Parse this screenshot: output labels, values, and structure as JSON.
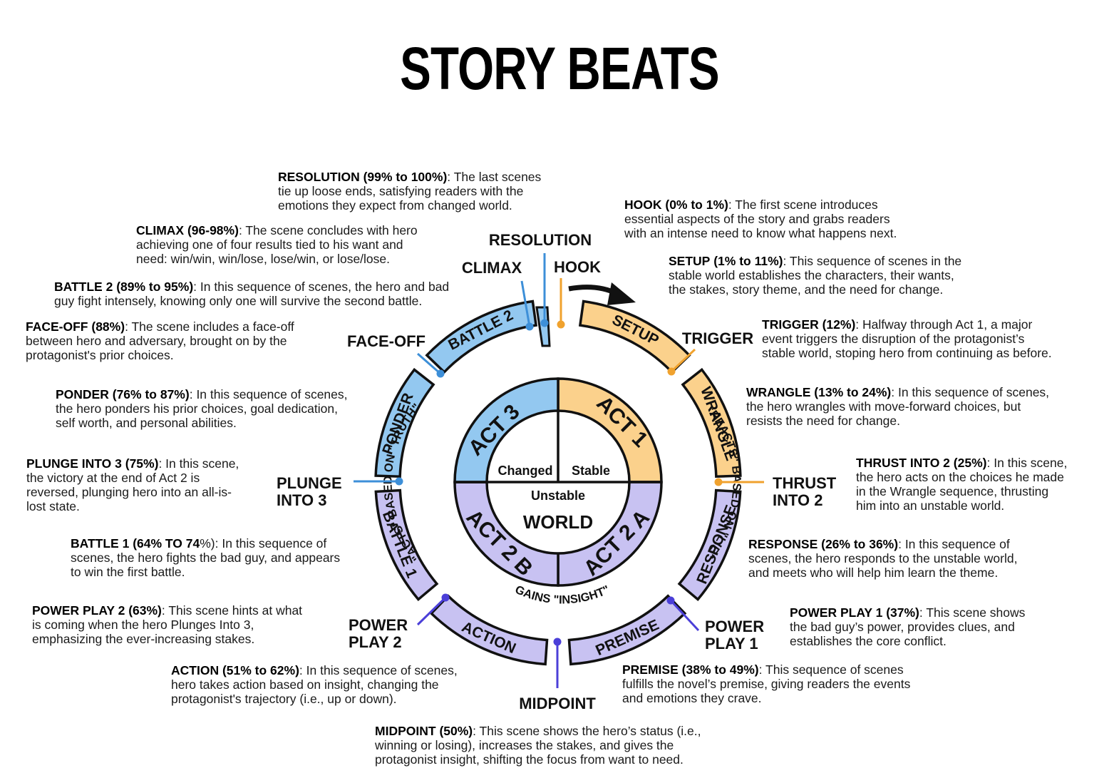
{
  "title": "STORY BEATS",
  "colors": {
    "orange": "#fbd18c",
    "blue": "#93c8f0",
    "purple": "#c8c2f2",
    "orange_line": "#f0a22e",
    "blue_line": "#3d8fd8",
    "purple_line": "#4b3fd8"
  },
  "beats": [
    {
      "id": "resolution",
      "name": "RESOLUTION",
      "range": "(99% to 100%)",
      "text": [
        "The last scenes",
        "tie up loose ends, satisfying readers with the",
        "emotions they expect from changed world."
      ]
    },
    {
      "id": "hook",
      "name": "HOOK",
      "range": "(0% to 1%)",
      "text": [
        "The first scene introduces",
        "essential aspects of the story and grabs readers",
        "with an intense need to know what happens next."
      ]
    },
    {
      "id": "climax",
      "name": "CLIMAX",
      "range": "(96-98%)",
      "text": [
        "The scene concludes with hero",
        "achieving one of four results tied to his want and",
        "need: win/win, win/lose, lose/win, or lose/lose."
      ]
    },
    {
      "id": "setup",
      "name": "SETUP",
      "range": "(1% to 11%)",
      "text": [
        "This sequence of scenes in the",
        "stable world establishes the characters, their wants,",
        "the stakes, story theme, and the need for change."
      ]
    },
    {
      "id": "battle2",
      "name": "BATTLE 2",
      "range": "(89% to 95%)",
      "text": [
        "In this sequence of scenes, the hero and bad",
        "guy fight intensely, knowing only one will survive the second battle."
      ]
    },
    {
      "id": "faceoff",
      "name": "FACE-OFF",
      "range": "(88%)",
      "text": [
        "The scene includes a face-off",
        "between hero and adversary, brought on by the",
        "protagonist's prior choices."
      ]
    },
    {
      "id": "trigger",
      "name": "TRIGGER",
      "range": "(12%)",
      "text": [
        "Halfway through Act 1, a major",
        "event triggers the disruption of the protagonist’s",
        "stable world, stoping hero from continuing as before."
      ]
    },
    {
      "id": "ponder",
      "name": "PONDER",
      "range": "(76% to 87%)",
      "text": [
        "In this sequence of scenes,",
        "the hero ponders his prior choices, goal dedication,",
        "self worth, and personal abilities."
      ]
    },
    {
      "id": "wrangle",
      "name": "WRANGLE",
      "range": "(13% to 24%)",
      "text": [
        "In this sequence of scenes,",
        "the hero wrangles with move-forward choices, but",
        "resists the need for change."
      ]
    },
    {
      "id": "plunge",
      "name": "PLUNGE INTO 3",
      "range": "(75%)",
      "text": [
        "In this scene,",
        "the victory at the end of Act 2 is",
        "reversed, plunging hero into an all-is-",
        "lost state."
      ]
    },
    {
      "id": "thrust",
      "name": "THRUST INTO 2",
      "range": "(25%)",
      "text": [
        "In this scene,",
        "the hero acts on the choices he made",
        "in the Wrangle sequence, thrusting",
        "him into an unstable world."
      ]
    },
    {
      "id": "battle1",
      "name": "BATTLE 1",
      "range": "(64% TO 74",
      "tail": "%)",
      "text": [
        ": In this sequence of",
        "scenes, the hero fights the bad guy, and appears",
        "to win the first battle."
      ]
    },
    {
      "id": "response",
      "name": "RESPONSE",
      "range": "(26% to 36%)",
      "text": [
        "In this sequence of",
        "scenes, the hero responds to the unstable world,",
        "and meets who will help him learn the theme."
      ]
    },
    {
      "id": "powerplay2",
      "name": "POWER PLAY 2",
      "range": "(63%)",
      "text": [
        "This scene hints at what",
        "is coming when the hero Plunges Into 3,",
        "emphasizing the ever-increasing stakes."
      ]
    },
    {
      "id": "powerplay1",
      "name": "POWER PLAY 1",
      "range": "(37%)",
      "text": [
        "This scene shows",
        "the bad guy’s power, provides clues, and",
        "establishes the core conflict."
      ]
    },
    {
      "id": "action",
      "name": "ACTION",
      "range": "(51% to 62%)",
      "text": [
        "In this sequence of scenes,",
        "hero takes action based on insight, changing the",
        "protagonist's trajectory (i.e., up or down)."
      ]
    },
    {
      "id": "premise",
      "name": "PREMISE",
      "range": "(38% to 49%)",
      "text": [
        "This sequence of scenes",
        "fulfills the novel’s premise, giving readers the events",
        "and emotions they crave."
      ]
    },
    {
      "id": "midpoint",
      "name": "MIDPOINT",
      "range": "(50%)",
      "text": [
        "This scene shows the hero’s status (i.e.,",
        "winning or losing), increases the stakes, and gives the",
        "protagonist insight, shifting the focus from want to need."
      ]
    }
  ],
  "wheel": {
    "segments": [
      "SETUP",
      "WRANGLE",
      "RESPONSE",
      "PREMISE",
      "ACTION",
      "BATTLE 1",
      "PONDER",
      "BATTLE 2"
    ],
    "acts": [
      "ACT 1",
      "ACT 2 A",
      "ACT 2 B",
      "ACT 3"
    ],
    "center": {
      "stable": "Stable",
      "changed": "Changed",
      "unstable": "Unstable",
      "world": "WORLD"
    },
    "arcs": {
      "right": "\"REACTS\" BASED ON \"LIE\"",
      "left": "\"ACTS\" BASED ON \"TRUTH\"",
      "bottom": "GAINS \"INSIGHT\""
    }
  },
  "point_labels": {
    "resolution": "RESOLUTION",
    "climax": "CLIMAX",
    "hook": "HOOK",
    "trigger": "TRIGGER",
    "faceoff": "FACE-OFF",
    "plunge_1": "PLUNGE",
    "plunge_2": "INTO 3",
    "thrust_1": "THRUST",
    "thrust_2": "INTO 2",
    "pp2_1": "POWER",
    "pp2_2": "PLAY 2",
    "pp1_1": "POWER",
    "pp1_2": "PLAY 1",
    "midpoint": "MIDPOINT"
  }
}
